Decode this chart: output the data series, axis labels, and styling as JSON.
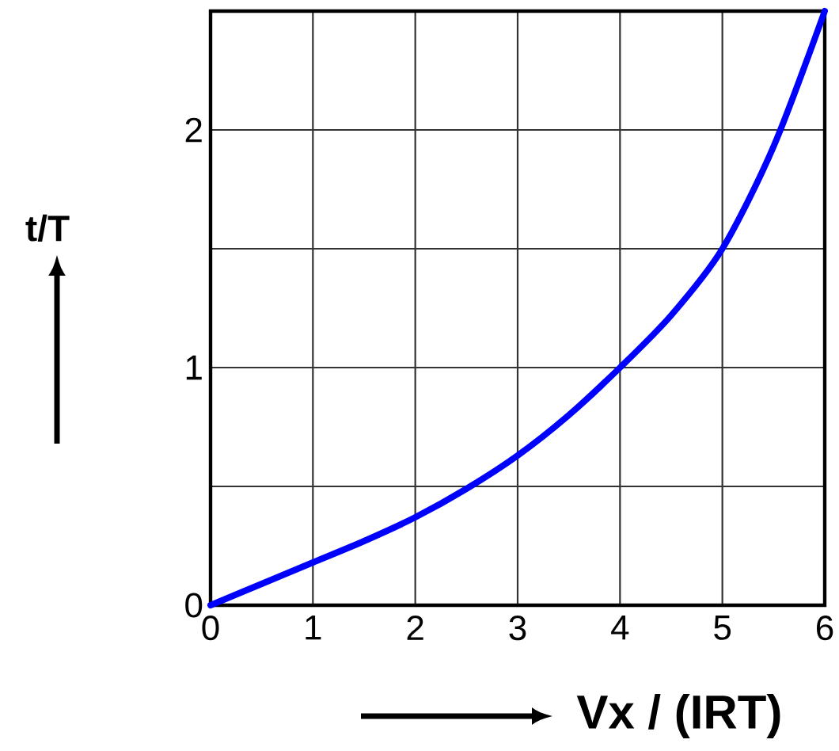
{
  "chart_data": {
    "type": "line",
    "xlabel": "Vx / (IRT)",
    "ylabel": "t/T",
    "x": [
      0,
      0.5,
      1,
      1.5,
      2,
      2.5,
      3,
      3.5,
      4,
      4.5,
      5,
      5.5,
      6
    ],
    "values": [
      0,
      0.09,
      0.18,
      0.27,
      0.37,
      0.49,
      0.63,
      0.8,
      1.0,
      1.22,
      1.5,
      1.93,
      2.5
    ],
    "color": "#0000ff",
    "xlim": [
      0,
      6
    ],
    "ylim": [
      0,
      2.5
    ],
    "xticks": [
      0,
      1,
      2,
      3,
      4,
      5,
      6
    ],
    "yticks": [
      0,
      {
        "value": 0.5,
        "label": null
      },
      1,
      {
        "value": 1.5,
        "label": null
      },
      2
    ],
    "grid": true
  }
}
